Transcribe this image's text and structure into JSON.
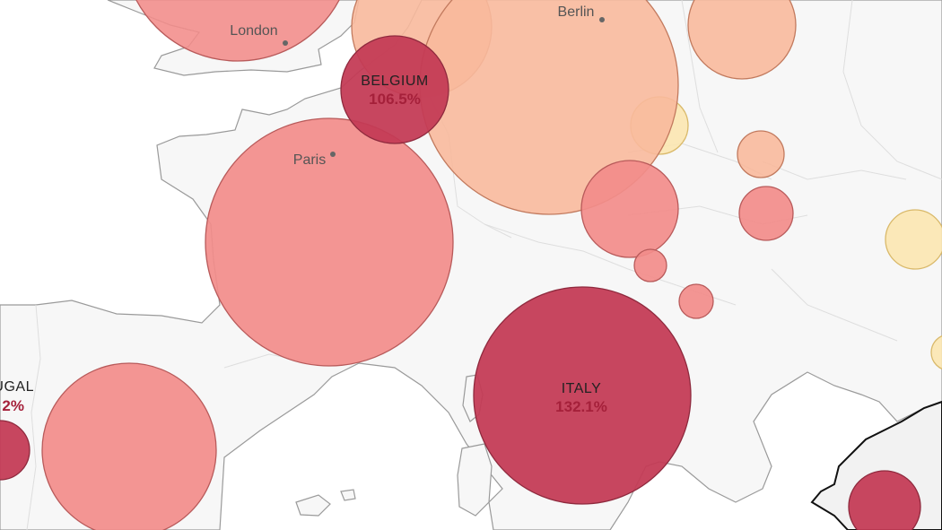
{
  "map": {
    "colors": {
      "land": "#f7f7f7",
      "border": "#9a9a9a",
      "highest": "#c33a55",
      "high": "#f28c8a",
      "medium": "#f8b99c",
      "low": "#fbe6b0",
      "value_text": "#a5203a"
    },
    "cities": [
      {
        "name": "London"
      },
      {
        "name": "Berlin"
      },
      {
        "name": "Paris"
      }
    ],
    "labeled_countries": [
      {
        "name": "BELGIUM",
        "value": "106.5%"
      },
      {
        "name": "ITALY",
        "value": "132.1%"
      },
      {
        "name": "UGAL",
        "value": "2%"
      }
    ]
  }
}
